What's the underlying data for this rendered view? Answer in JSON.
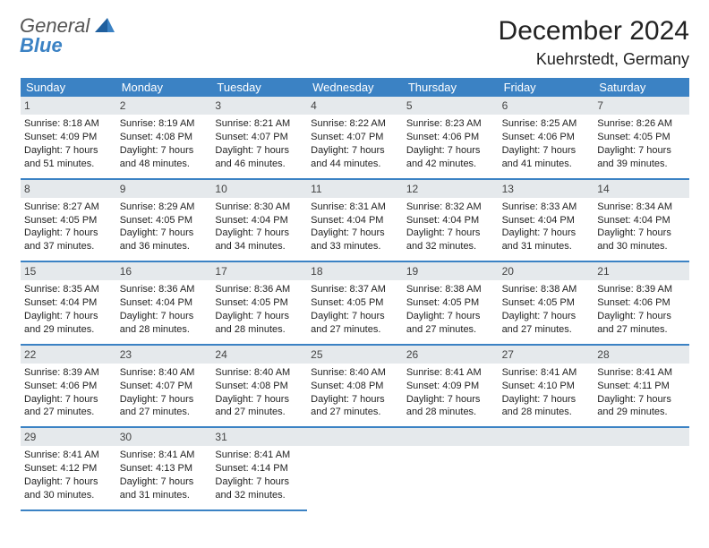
{
  "logo": {
    "line1": "General",
    "line2": "Blue"
  },
  "header": {
    "month": "December 2024",
    "location": "Kuehrstedt, Germany"
  },
  "colors": {
    "accent": "#3b82c4",
    "headerbar_bg": "#e5e9ec",
    "text": "#222222",
    "logo_gray": "#555555",
    "logo_blue": "#3b82c4",
    "background": "#ffffff"
  },
  "calendar": {
    "type": "table",
    "columns": [
      "Sunday",
      "Monday",
      "Tuesday",
      "Wednesday",
      "Thursday",
      "Friday",
      "Saturday"
    ],
    "cell_fontsize": 11,
    "header_fontsize": 13,
    "days": [
      {
        "n": "1",
        "sr": "Sunrise: 8:18 AM",
        "ss": "Sunset: 4:09 PM",
        "dl1": "Daylight: 7 hours",
        "dl2": "and 51 minutes."
      },
      {
        "n": "2",
        "sr": "Sunrise: 8:19 AM",
        "ss": "Sunset: 4:08 PM",
        "dl1": "Daylight: 7 hours",
        "dl2": "and 48 minutes."
      },
      {
        "n": "3",
        "sr": "Sunrise: 8:21 AM",
        "ss": "Sunset: 4:07 PM",
        "dl1": "Daylight: 7 hours",
        "dl2": "and 46 minutes."
      },
      {
        "n": "4",
        "sr": "Sunrise: 8:22 AM",
        "ss": "Sunset: 4:07 PM",
        "dl1": "Daylight: 7 hours",
        "dl2": "and 44 minutes."
      },
      {
        "n": "5",
        "sr": "Sunrise: 8:23 AM",
        "ss": "Sunset: 4:06 PM",
        "dl1": "Daylight: 7 hours",
        "dl2": "and 42 minutes."
      },
      {
        "n": "6",
        "sr": "Sunrise: 8:25 AM",
        "ss": "Sunset: 4:06 PM",
        "dl1": "Daylight: 7 hours",
        "dl2": "and 41 minutes."
      },
      {
        "n": "7",
        "sr": "Sunrise: 8:26 AM",
        "ss": "Sunset: 4:05 PM",
        "dl1": "Daylight: 7 hours",
        "dl2": "and 39 minutes."
      },
      {
        "n": "8",
        "sr": "Sunrise: 8:27 AM",
        "ss": "Sunset: 4:05 PM",
        "dl1": "Daylight: 7 hours",
        "dl2": "and 37 minutes."
      },
      {
        "n": "9",
        "sr": "Sunrise: 8:29 AM",
        "ss": "Sunset: 4:05 PM",
        "dl1": "Daylight: 7 hours",
        "dl2": "and 36 minutes."
      },
      {
        "n": "10",
        "sr": "Sunrise: 8:30 AM",
        "ss": "Sunset: 4:04 PM",
        "dl1": "Daylight: 7 hours",
        "dl2": "and 34 minutes."
      },
      {
        "n": "11",
        "sr": "Sunrise: 8:31 AM",
        "ss": "Sunset: 4:04 PM",
        "dl1": "Daylight: 7 hours",
        "dl2": "and 33 minutes."
      },
      {
        "n": "12",
        "sr": "Sunrise: 8:32 AM",
        "ss": "Sunset: 4:04 PM",
        "dl1": "Daylight: 7 hours",
        "dl2": "and 32 minutes."
      },
      {
        "n": "13",
        "sr": "Sunrise: 8:33 AM",
        "ss": "Sunset: 4:04 PM",
        "dl1": "Daylight: 7 hours",
        "dl2": "and 31 minutes."
      },
      {
        "n": "14",
        "sr": "Sunrise: 8:34 AM",
        "ss": "Sunset: 4:04 PM",
        "dl1": "Daylight: 7 hours",
        "dl2": "and 30 minutes."
      },
      {
        "n": "15",
        "sr": "Sunrise: 8:35 AM",
        "ss": "Sunset: 4:04 PM",
        "dl1": "Daylight: 7 hours",
        "dl2": "and 29 minutes."
      },
      {
        "n": "16",
        "sr": "Sunrise: 8:36 AM",
        "ss": "Sunset: 4:04 PM",
        "dl1": "Daylight: 7 hours",
        "dl2": "and 28 minutes."
      },
      {
        "n": "17",
        "sr": "Sunrise: 8:36 AM",
        "ss": "Sunset: 4:05 PM",
        "dl1": "Daylight: 7 hours",
        "dl2": "and 28 minutes."
      },
      {
        "n": "18",
        "sr": "Sunrise: 8:37 AM",
        "ss": "Sunset: 4:05 PM",
        "dl1": "Daylight: 7 hours",
        "dl2": "and 27 minutes."
      },
      {
        "n": "19",
        "sr": "Sunrise: 8:38 AM",
        "ss": "Sunset: 4:05 PM",
        "dl1": "Daylight: 7 hours",
        "dl2": "and 27 minutes."
      },
      {
        "n": "20",
        "sr": "Sunrise: 8:38 AM",
        "ss": "Sunset: 4:05 PM",
        "dl1": "Daylight: 7 hours",
        "dl2": "and 27 minutes."
      },
      {
        "n": "21",
        "sr": "Sunrise: 8:39 AM",
        "ss": "Sunset: 4:06 PM",
        "dl1": "Daylight: 7 hours",
        "dl2": "and 27 minutes."
      },
      {
        "n": "22",
        "sr": "Sunrise: 8:39 AM",
        "ss": "Sunset: 4:06 PM",
        "dl1": "Daylight: 7 hours",
        "dl2": "and 27 minutes."
      },
      {
        "n": "23",
        "sr": "Sunrise: 8:40 AM",
        "ss": "Sunset: 4:07 PM",
        "dl1": "Daylight: 7 hours",
        "dl2": "and 27 minutes."
      },
      {
        "n": "24",
        "sr": "Sunrise: 8:40 AM",
        "ss": "Sunset: 4:08 PM",
        "dl1": "Daylight: 7 hours",
        "dl2": "and 27 minutes."
      },
      {
        "n": "25",
        "sr": "Sunrise: 8:40 AM",
        "ss": "Sunset: 4:08 PM",
        "dl1": "Daylight: 7 hours",
        "dl2": "and 27 minutes."
      },
      {
        "n": "26",
        "sr": "Sunrise: 8:41 AM",
        "ss": "Sunset: 4:09 PM",
        "dl1": "Daylight: 7 hours",
        "dl2": "and 28 minutes."
      },
      {
        "n": "27",
        "sr": "Sunrise: 8:41 AM",
        "ss": "Sunset: 4:10 PM",
        "dl1": "Daylight: 7 hours",
        "dl2": "and 28 minutes."
      },
      {
        "n": "28",
        "sr": "Sunrise: 8:41 AM",
        "ss": "Sunset: 4:11 PM",
        "dl1": "Daylight: 7 hours",
        "dl2": "and 29 minutes."
      },
      {
        "n": "29",
        "sr": "Sunrise: 8:41 AM",
        "ss": "Sunset: 4:12 PM",
        "dl1": "Daylight: 7 hours",
        "dl2": "and 30 minutes."
      },
      {
        "n": "30",
        "sr": "Sunrise: 8:41 AM",
        "ss": "Sunset: 4:13 PM",
        "dl1": "Daylight: 7 hours",
        "dl2": "and 31 minutes."
      },
      {
        "n": "31",
        "sr": "Sunrise: 8:41 AM",
        "ss": "Sunset: 4:14 PM",
        "dl1": "Daylight: 7 hours",
        "dl2": "and 32 minutes."
      }
    ]
  }
}
